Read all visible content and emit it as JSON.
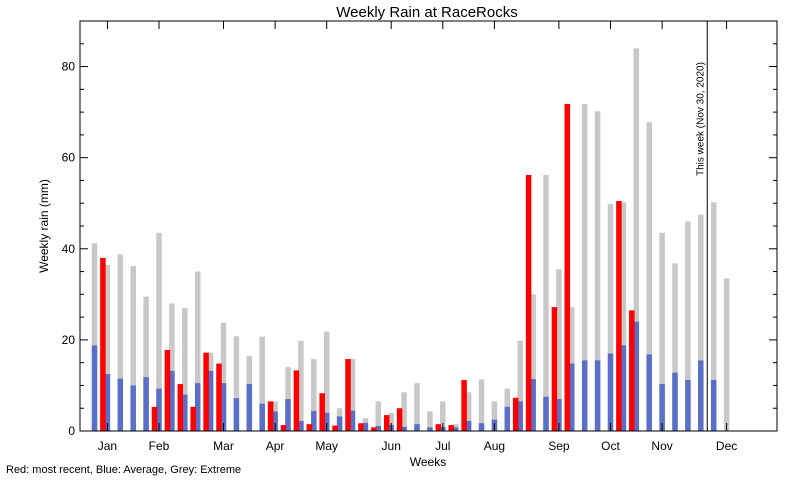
{
  "chart_data": {
    "type": "bar",
    "title": "Weekly Rain at RaceRocks",
    "xlabel": "Weeks",
    "ylabel": "Weekly rain (mm)",
    "ylim": [
      0,
      90
    ],
    "yticks": [
      0,
      20,
      40,
      60,
      80
    ],
    "month_labels": [
      "Jan",
      "Feb",
      "Mar",
      "Apr",
      "May",
      "Jun",
      "Jul",
      "Aug",
      "Sep",
      "Oct",
      "Nov",
      "Dec"
    ],
    "month_label_weeks": [
      1,
      5,
      10,
      14,
      18,
      23,
      27,
      31,
      36,
      40,
      44,
      49
    ],
    "annotation": {
      "text": "This week (Nov 30, 2020)",
      "week": 47.5
    },
    "legend_note": "Red: most recent, Blue: Average, Grey: Extreme",
    "colors": {
      "extreme": "#c8c8c8",
      "average": "#5a6fc8",
      "recent": "#ff0000"
    },
    "series": [
      {
        "name": "Extreme",
        "values": [
          41.2,
          36.5,
          38.8,
          36.2,
          29.5,
          43.5,
          28.0,
          27.0,
          35.0,
          17.2,
          23.8,
          20.8,
          16.5,
          20.7,
          6.5,
          14.0,
          19.8,
          15.8,
          21.8,
          5.0,
          15.8,
          2.8,
          6.5,
          4.0,
          8.5,
          10.5,
          4.3,
          6.5,
          1.5,
          8.5,
          11.3,
          6.5,
          9.3,
          19.8,
          30.0,
          56.2,
          35.5,
          27.2,
          71.8,
          70.2,
          49.8,
          50.2,
          84.0,
          67.8,
          43.5,
          36.8,
          46.0,
          47.5,
          50.2,
          33.5
        ]
      },
      {
        "name": "Average",
        "values": [
          18.8,
          12.5,
          11.5,
          10.0,
          11.8,
          9.3,
          13.2,
          8.0,
          10.5,
          13.2,
          10.5,
          7.2,
          10.3,
          6.0,
          4.3,
          7.0,
          2.2,
          4.4,
          4.0,
          3.2,
          4.5,
          1.8,
          1.1,
          1.3,
          0.9,
          1.5,
          0.8,
          0.9,
          0.8,
          2.2,
          1.7,
          2.5,
          5.3,
          6.5,
          11.4,
          7.5,
          7.0,
          14.8,
          15.5,
          15.5,
          17.0,
          18.8,
          24.0,
          16.8,
          10.3,
          12.8,
          11.2,
          15.5,
          11.2,
          0
        ]
      },
      {
        "name": "Recent",
        "values": [
          0,
          38.0,
          0,
          0,
          0,
          5.3,
          17.8,
          10.3,
          5.3,
          17.2,
          14.8,
          0,
          0,
          0,
          6.5,
          1.3,
          13.3,
          1.5,
          8.3,
          1.2,
          15.8,
          1.7,
          0.8,
          3.5,
          5.0,
          0,
          0,
          1.5,
          1.3,
          11.2,
          0,
          0,
          0,
          7.3,
          56.2,
          0,
          27.2,
          71.8,
          0,
          0,
          0,
          50.5,
          26.5,
          0,
          0,
          0,
          0,
          0,
          0,
          0
        ]
      }
    ]
  }
}
